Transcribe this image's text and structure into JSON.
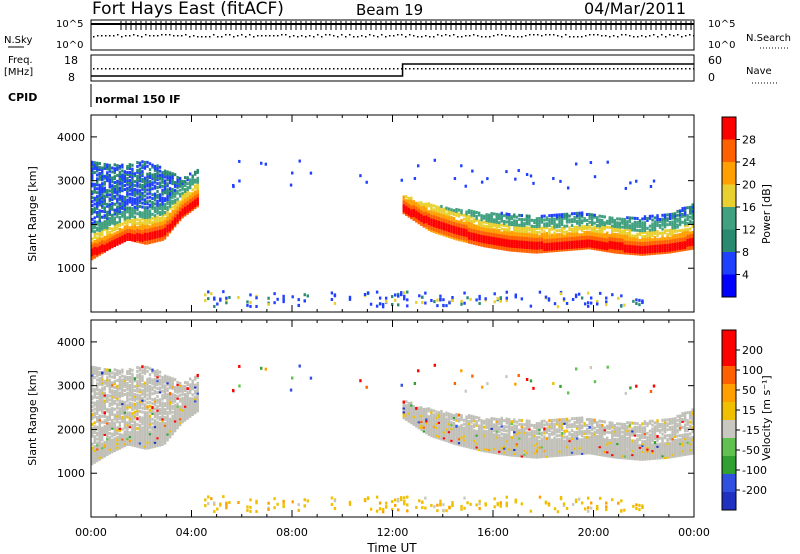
{
  "header": {
    "title": "Fort Hays East (fitACF)",
    "beam": "Beam 19",
    "date": "04/Mar/2011"
  },
  "housekeeping": {
    "nsky_label": "N.Sky",
    "nsky_ticks": [
      "10^5",
      "10^0"
    ],
    "nsearch_label": "N.Search",
    "nsearch_ticks": [
      "10^5",
      "10^0"
    ],
    "freq_label": "Freq.",
    "freq_unit": "[MHz]",
    "freq_ticks": [
      "18",
      "8"
    ],
    "nave_label": "Nave",
    "nave_ticks": [
      "60",
      "0"
    ],
    "cpid_label": "CPID",
    "cpid_value": "normal 150 IF"
  },
  "colors": {
    "power_scale": [
      "#0000ff",
      "#2040ff",
      "#2a8a70",
      "#40a080",
      "#e8d030",
      "#ffa000",
      "#ff6000",
      "#ff0000"
    ],
    "velocity_scale": [
      "#2030c0",
      "#3050e0",
      "#30a030",
      "#60c050",
      "#c8c8c0",
      "#f0c000",
      "#ffa000",
      "#ff6000",
      "#ff0000",
      "#ff0000"
    ],
    "ground_scatter": "#c0c0b8"
  },
  "chart_data": [
    {
      "type": "heatmap",
      "name": "power",
      "ylabel": "Slant Range [km]",
      "ylim": [
        0,
        4500
      ],
      "yticks": [
        "1000",
        "2000",
        "3000",
        "4000"
      ],
      "xlim": [
        0,
        24
      ],
      "colorbar_label": "Power [dB]",
      "colorbar_ticks": [
        "28",
        "24",
        "20",
        "16",
        "12",
        "8",
        "4"
      ],
      "bands": [
        {
          "start": 0.0,
          "end": 4.3,
          "range_low": [
            1250,
            1500,
            1700,
            1600,
            1700,
            2200,
            2500
          ],
          "range_high": [
            3500,
            3400,
            3400,
            3500,
            3300,
            3100,
            3300
          ],
          "peak": [
            1400,
            1550,
            1750,
            1750,
            1850,
            2300,
            2600
          ]
        },
        {
          "start": 12.4,
          "end": 24.0,
          "range_low": [
            2300,
            1900,
            1700,
            1550,
            1450,
            1400,
            1450,
            1500,
            1400,
            1350,
            1400,
            1500
          ],
          "range_high": [
            2700,
            2500,
            2400,
            2300,
            2300,
            2200,
            2300,
            2300,
            2200,
            2200,
            2300,
            2500
          ],
          "peak": [
            2400,
            2100,
            1900,
            1700,
            1600,
            1550,
            1550,
            1600,
            1550,
            1450,
            1500,
            1650
          ]
        }
      ],
      "near_range": {
        "start": 4.5,
        "end": 22.0,
        "range": [
          150,
          500
        ]
      }
    },
    {
      "type": "heatmap",
      "name": "velocity",
      "ylabel": "Slant Range [km]",
      "ylim": [
        0,
        4500
      ],
      "yticks": [
        "1000",
        "2000",
        "3000",
        "4000"
      ],
      "xlim": [
        0,
        24
      ],
      "xticks": [
        "00:00",
        "04:00",
        "08:00",
        "12:00",
        "16:00",
        "20:00",
        "00:00"
      ],
      "xlabel": "Time UT",
      "colorbar_label": "Velocity [m s⁻¹]",
      "colorbar_ticks": [
        "200",
        "100",
        "50",
        "15",
        "-15",
        "-50",
        "-100",
        "-200"
      ],
      "dominant_value": "ground scatter / |v| < 15 m/s"
    }
  ]
}
